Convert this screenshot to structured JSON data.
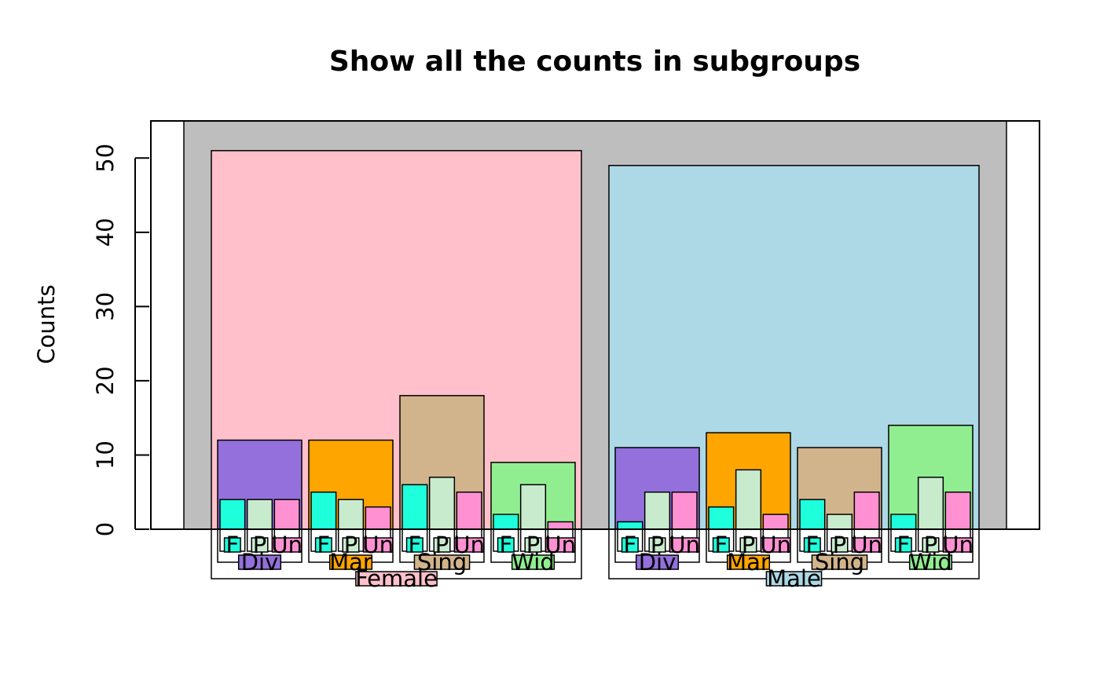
{
  "chart_data": {
    "type": "bar",
    "title": "Show all the counts in subgroups",
    "ylabel": "Counts",
    "xlabel": "",
    "ylim": [
      0,
      55
    ],
    "yticks": [
      0,
      10,
      20,
      30,
      40,
      50
    ],
    "background_color": "#bebebe",
    "groups": [
      {
        "name": "Female",
        "value": 51,
        "color": "#ffc0cb",
        "subgroups": [
          {
            "name": "Div",
            "value": 12,
            "color": "#9370db",
            "children": [
              {
                "name": "F",
                "value": 4
              },
              {
                "name": "P",
                "value": 4
              },
              {
                "name": "Un",
                "value": 4
              }
            ]
          },
          {
            "name": "Mar",
            "value": 12,
            "color": "#ffa500",
            "children": [
              {
                "name": "F",
                "value": 5
              },
              {
                "name": "P",
                "value": 4
              },
              {
                "name": "Un",
                "value": 3
              }
            ]
          },
          {
            "name": "Sing",
            "value": 18,
            "color": "#d2b48c",
            "children": [
              {
                "name": "F",
                "value": 6
              },
              {
                "name": "P",
                "value": 7
              },
              {
                "name": "Un",
                "value": 5
              }
            ]
          },
          {
            "name": "Wid",
            "value": 9,
            "color": "#90ee90",
            "children": [
              {
                "name": "F",
                "value": 2
              },
              {
                "name": "P",
                "value": 6
              },
              {
                "name": "Un",
                "value": 1
              }
            ]
          }
        ]
      },
      {
        "name": "Male",
        "value": 49,
        "color": "#add8e6",
        "subgroups": [
          {
            "name": "Div",
            "value": 11,
            "color": "#9370db",
            "children": [
              {
                "name": "F",
                "value": 1
              },
              {
                "name": "P",
                "value": 5
              },
              {
                "name": "Un",
                "value": 5
              }
            ]
          },
          {
            "name": "Mar",
            "value": 13,
            "color": "#ffa500",
            "children": [
              {
                "name": "F",
                "value": 3
              },
              {
                "name": "P",
                "value": 8
              },
              {
                "name": "Un",
                "value": 2
              }
            ]
          },
          {
            "name": "Sing",
            "value": 11,
            "color": "#d2b48c",
            "children": [
              {
                "name": "F",
                "value": 4
              },
              {
                "name": "P",
                "value": 2
              },
              {
                "name": "Un",
                "value": 5
              }
            ]
          },
          {
            "name": "Wid",
            "value": 14,
            "color": "#90ee90",
            "children": [
              {
                "name": "F",
                "value": 2
              },
              {
                "name": "P",
                "value": 7
              },
              {
                "name": "Un",
                "value": 5
              }
            ]
          }
        ]
      }
    ],
    "child_colors": {
      "F": "#1effdc",
      "P": "#c8ebcd",
      "Un": "#ff91d2"
    }
  }
}
